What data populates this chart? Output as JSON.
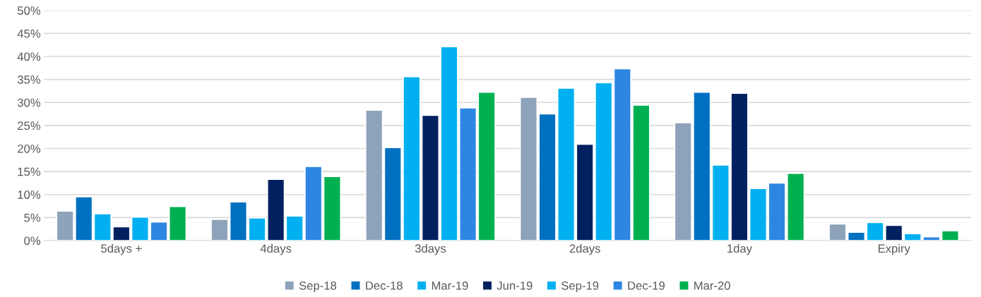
{
  "chart_data": {
    "type": "bar",
    "categories": [
      "5days +",
      "4days",
      "3days",
      "2days",
      "1day",
      "Expiry"
    ],
    "series": [
      {
        "name": "Sep-18",
        "color": "#8da3ba",
        "values": [
          6.4,
          4.6,
          28.3,
          31.1,
          25.6,
          3.6
        ]
      },
      {
        "name": "Dec-18",
        "color": "#0070c0",
        "values": [
          9.5,
          8.4,
          20.2,
          27.5,
          32.2,
          1.8
        ]
      },
      {
        "name": "Mar-19",
        "color": "#00b0f0",
        "values": [
          5.8,
          4.9,
          35.6,
          33.1,
          16.4,
          3.9
        ]
      },
      {
        "name": "Jun-19",
        "color": "#002060",
        "values": [
          3.0,
          13.3,
          27.2,
          20.9,
          32.0,
          3.3
        ]
      },
      {
        "name": "Sep-19",
        "color": "#00b0f0",
        "values": [
          5.1,
          5.3,
          42.1,
          34.3,
          11.3,
          1.5
        ]
      },
      {
        "name": "Dec-19",
        "color": "#2e86e3",
        "values": [
          4.0,
          16.1,
          28.8,
          37.3,
          12.5,
          0.8
        ]
      },
      {
        "name": "Mar-20",
        "color": "#00b050",
        "values": [
          7.4,
          13.9,
          32.2,
          29.4,
          14.6,
          2.1
        ]
      }
    ],
    "ylim": [
      0,
      50
    ],
    "yticks": [
      {
        "value": 0,
        "label": "0%"
      },
      {
        "value": 5,
        "label": "5%"
      },
      {
        "value": 10,
        "label": "10%"
      },
      {
        "value": 15,
        "label": "15%"
      },
      {
        "value": 20,
        "label": "20%"
      },
      {
        "value": 25,
        "label": "25%"
      },
      {
        "value": 30,
        "label": "30%"
      },
      {
        "value": 35,
        "label": "35%"
      },
      {
        "value": 40,
        "label": "40%"
      },
      {
        "value": 45,
        "label": "45%"
      },
      {
        "value": 50,
        "label": "50%"
      }
    ],
    "grid": "y",
    "legend": "bottom"
  }
}
